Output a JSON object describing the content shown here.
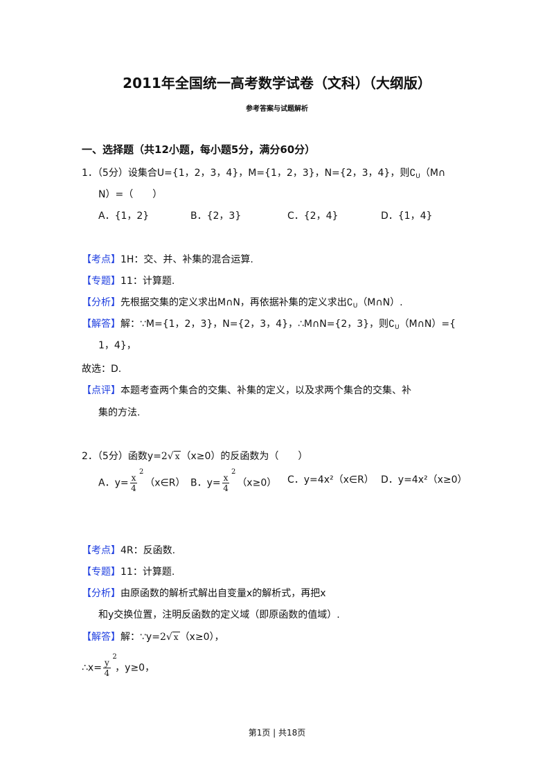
{
  "title": "2011年全国统一高考数学试卷（文科）（大纲版）",
  "subtitle": "参考答案与试题解析",
  "section": "一、选择题（共12小题，每小题5分，满分60分）",
  "q1": {
    "stem1": "1．（5分）设集合U={1，2，3，4}，M={1，2，3}，N={2，3，4}，则∁",
    "stem1_sub": "U",
    "stem1_end": "（M∩",
    "stem2": "N）=（　　）",
    "options": [
      "A．{1，2}",
      "B．{2，3}",
      "C．{2，4}",
      "D．{1，4}"
    ],
    "kaodian_label": "【考点】",
    "kaodian": "1H：交、并、补集的混合运算.",
    "zhuanti_label": "【专题】",
    "zhuanti": "11：计算题.",
    "fenxi_label": "【分析】",
    "fenxi_a": "先根据交集的定义求出M∩N，再依据补集的定义求出∁",
    "fenxi_sub": "U",
    "fenxi_b": "（M∩N）.",
    "jieda_label": "【解答】",
    "jieda_a": "解：∵M={1，2，3}，N={2，3，4}，∴M∩N={2，3}，则∁",
    "jieda_sub": "U",
    "jieda_b": "（M∩N）={",
    "jieda2": "1，4}，",
    "guxuan": "故选：D.",
    "dianping_label": "【点评】",
    "dianping1": "本题考查两个集合的交集、补集的定义，以及求两个集合的交集、补",
    "dianping2": "集的方法."
  },
  "q2": {
    "stem_a": "2．（5分）函数y=",
    "stem_coef": "2",
    "stem_rad": "x",
    "stem_b": "（x≥0）的反函数为（　　）",
    "optA_a": "A．y=",
    "optA_num": "x",
    "optA_pow": "2",
    "optA_den": "4",
    "optA_b": "（x∈R）",
    "optB_a": "B．y=",
    "optB_num": "x",
    "optB_pow": "2",
    "optB_den": "4",
    "optB_b": "（x≥0）",
    "optC": "C．y=4x²（x∈R）",
    "optD": "D．y=4x²（x≥0）",
    "kaodian_label": "【考点】",
    "kaodian": "4R：反函数.",
    "zhuanti_label": "【专题】",
    "zhuanti": "11：计算题.",
    "fenxi_label": "【分析】",
    "fenxi1": "由原函数的解析式解出自变量x的解析式，再把x",
    "fenxi2": "和y交换位置，注明反函数的定义域（即原函数的值域）.",
    "jieda_label": "【解答】",
    "jieda_a": "解：∵y=",
    "jieda_coef": "2",
    "jieda_rad": "x",
    "jieda_b": "（x≥0），",
    "res_a": "∴x=",
    "res_num": "y",
    "res_pow": "2",
    "res_den": "4",
    "res_b": "，y≥0，"
  },
  "footer": "第1页 | 共18页",
  "colors": {
    "tag": "#1f3fe0",
    "text": "#111111"
  }
}
